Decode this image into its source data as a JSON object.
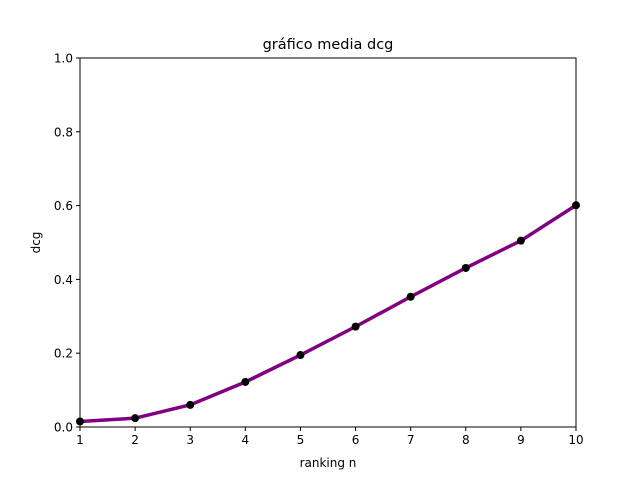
{
  "chart_data": {
    "type": "line",
    "title": "gráfico media dcg",
    "xlabel": "ranking n",
    "ylabel": "dcg",
    "xlim": [
      1,
      10
    ],
    "ylim": [
      0.0,
      1.0
    ],
    "x_ticks": [
      "1",
      "2",
      "3",
      "4",
      "5",
      "6",
      "7",
      "8",
      "9",
      "10"
    ],
    "y_ticks": [
      "0.0",
      "0.2",
      "0.4",
      "0.6",
      "0.8",
      "1.0"
    ],
    "grid": false,
    "series": [
      {
        "x": [
          1,
          2,
          3,
          4,
          5,
          6,
          7,
          8,
          9,
          10
        ],
        "values": [
          0.015,
          0.024,
          0.06,
          0.122,
          0.195,
          0.272,
          0.353,
          0.431,
          0.505,
          0.601
        ],
        "line_color": "#800080",
        "marker_color": "#000000"
      }
    ]
  }
}
